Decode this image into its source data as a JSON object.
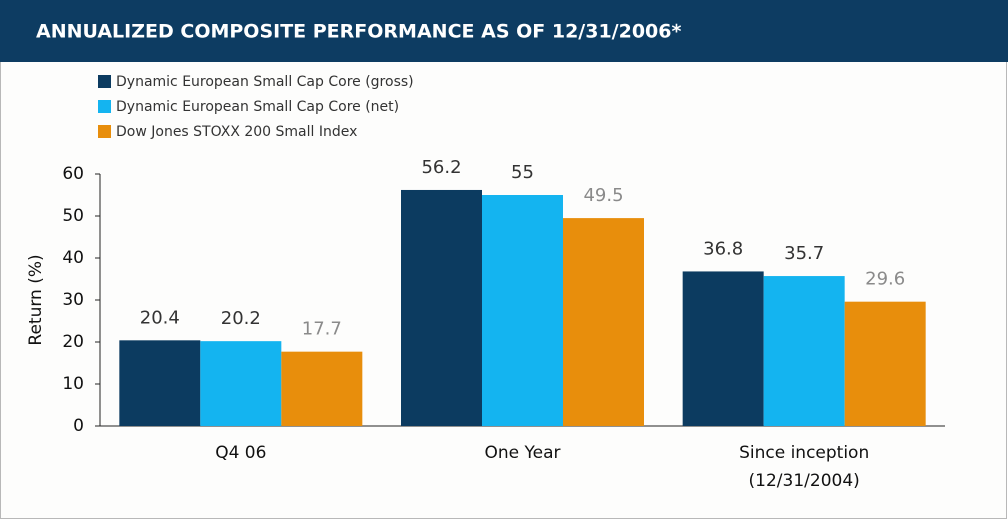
{
  "chart_data": {
    "type": "bar",
    "title": "ANNUALIZED COMPOSITE PERFORMANCE AS OF 12/31/2006*",
    "y_label": "Return (%)",
    "categories": [
      "Q4 06",
      "One Year",
      "Since inception (12/31/2004)"
    ],
    "series": [
      {
        "name": "Dynamic European Small Cap Core (gross)",
        "color": "#0c3b60",
        "values": [
          20.4,
          56.2,
          36.8
        ]
      },
      {
        "name": "Dynamic European Small Cap Core (net)",
        "color": "#14b4f0",
        "values": [
          20.2,
          55.0,
          35.7
        ]
      },
      {
        "name": "Dow Jones STOXX 200 Small Index",
        "color": "#e88e0c",
        "values": [
          17.7,
          49.5,
          29.6
        ]
      }
    ],
    "ylim": [
      0,
      60
    ],
    "yticks": [
      0,
      10,
      20,
      30,
      40,
      50,
      60
    ],
    "legend": "top-left"
  }
}
